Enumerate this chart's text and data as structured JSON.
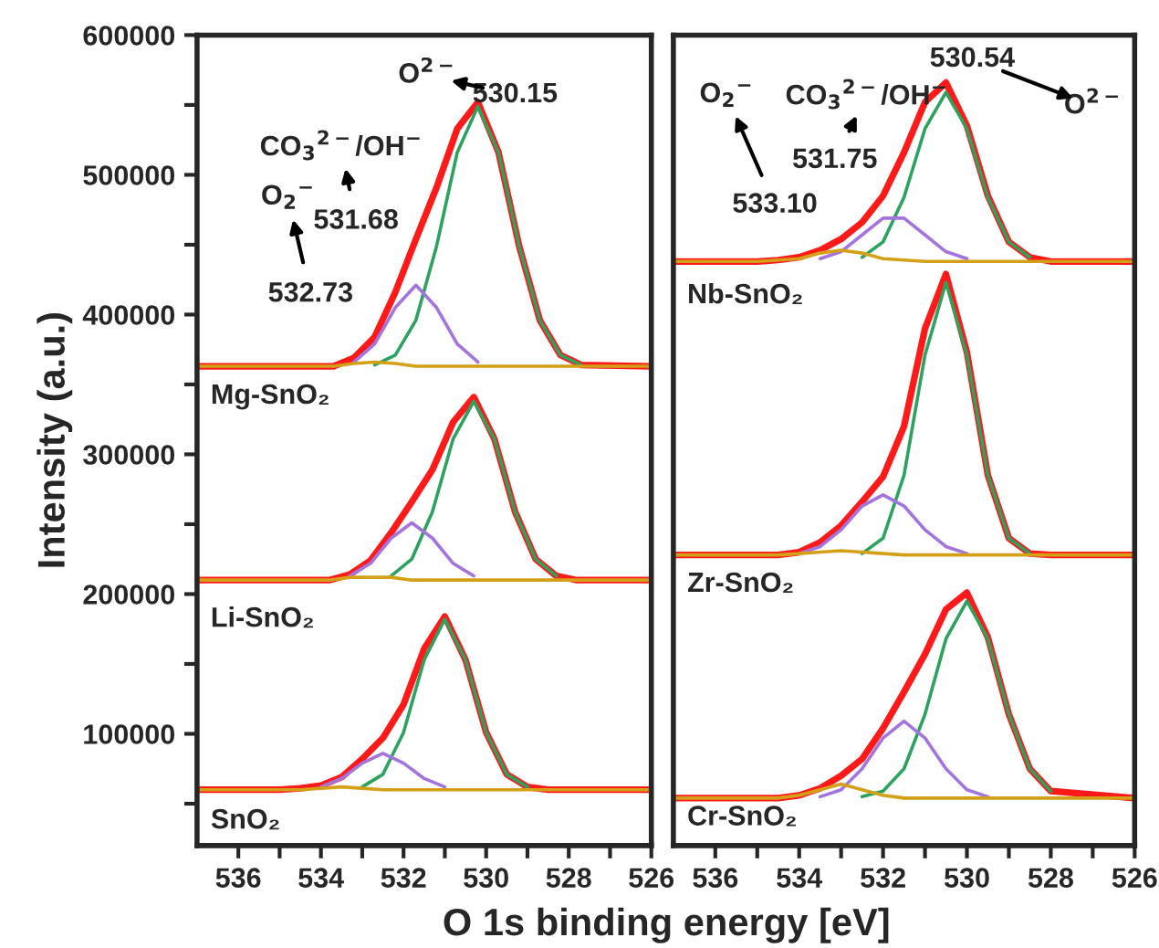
{
  "chart_data": [
    {
      "type": "line",
      "ylabel": "Intensity (a.u.)",
      "xlabel": "O 1s binding energy [eV]",
      "xlim": [
        537,
        526
      ],
      "ylim": [
        20000,
        600000
      ],
      "xticks": [
        536,
        {
          "value": 535,
          "label": null
        },
        534,
        {
          "value": 533,
          "label": null
        },
        532,
        {
          "value": 531,
          "label": null
        },
        530,
        {
          "value": 529,
          "label": null
        },
        528,
        {
          "value": 527,
          "label": null
        },
        526
      ],
      "yticks": [
        {
          "value": 50000,
          "label": null
        },
        100000,
        {
          "value": 150000,
          "label": null
        },
        200000,
        {
          "value": 250000,
          "label": null
        },
        300000,
        {
          "value": 350000,
          "label": null
        },
        400000,
        {
          "value": 450000,
          "label": null
        },
        500000,
        {
          "value": 550000,
          "label": null
        },
        600000
      ],
      "grid": false,
      "legend": false,
      "annotations": [
        "O$^{2−}$",
        "530.15",
        "CO$_{3}$$^{2−}$/OH$^{−}$",
        "531.68",
        "O$_{2}$$^{−}$",
        "532.73",
        "Mg-SnO₂",
        "Li-SnO₂",
        "SnO₂"
      ],
      "series": [
        {
          "color": "#ff1a1a",
          "x": [
            537,
            534.7,
            534.2,
            533.7,
            533.2,
            532.7,
            532.2,
            531.7,
            531.2,
            530.7,
            530.2,
            529.7,
            529.2,
            528.7,
            528.2,
            527.7,
            526
          ],
          "values": [
            363000,
            363000,
            363000,
            363000,
            369000,
            384000,
            416000,
            454000,
            491000,
            533000,
            552000,
            516000,
            449000,
            396000,
            371000,
            364000,
            363000
          ]
        },
        {
          "color": "#2ca25f",
          "x": [
            532.7,
            532.2,
            531.7,
            531.2,
            530.7,
            530.2,
            529.7,
            529.2,
            528.7,
            528.2,
            527.7
          ],
          "values": [
            364000,
            371000,
            396000,
            449000,
            516000,
            549000,
            516000,
            449000,
            396000,
            371000,
            364000
          ]
        },
        {
          "color": "#a374e0",
          "x": [
            533.2,
            532.7,
            532.2,
            531.7,
            531.2,
            530.7,
            530.2
          ],
          "values": [
            366000,
            379000,
            405000,
            421000,
            405000,
            379000,
            366000
          ]
        },
        {
          "color": "#d4a017",
          "x": [
            537,
            534.7,
            534.2,
            533.7,
            533.2,
            532.7,
            532.2,
            531.7,
            531.2,
            530.7,
            530.2,
            529.7,
            529.2,
            528.7,
            528.2,
            527.7,
            526
          ],
          "values": [
            363000,
            363000,
            363000,
            363000,
            365000,
            366000,
            365000,
            363000,
            363000,
            363000,
            363000,
            363000,
            363000,
            363000,
            363000,
            363000,
            363000
          ]
        },
        {
          "color": "#ff1a1a",
          "x": [
            537,
            534.8,
            534.3,
            533.8,
            533.3,
            532.8,
            532.3,
            531.8,
            531.3,
            530.8,
            530.3,
            529.8,
            529.3,
            528.8,
            528.3,
            527.8,
            526
          ],
          "values": [
            210000,
            210000,
            210000,
            210000,
            214000,
            224000,
            244000,
            266000,
            289000,
            323000,
            341000,
            311000,
            259000,
            225000,
            213000,
            210000,
            210000
          ]
        },
        {
          "color": "#2ca25f",
          "x": [
            532.3,
            531.8,
            531.3,
            530.8,
            530.3,
            529.8,
            529.3,
            528.8,
            528.3
          ],
          "values": [
            213000,
            225000,
            259000,
            311000,
            338000,
            311000,
            259000,
            225000,
            213000
          ]
        },
        {
          "color": "#a374e0",
          "x": [
            533.3,
            532.8,
            532.3,
            531.8,
            531.3,
            530.8,
            530.3
          ],
          "values": [
            213000,
            222000,
            240000,
            251000,
            240000,
            222000,
            213000
          ]
        },
        {
          "color": "#d4a017",
          "x": [
            537,
            534.8,
            534.3,
            533.8,
            533.3,
            532.8,
            532.3,
            531.8,
            531.3,
            530.8,
            530.3,
            529.8,
            529.3,
            528.8,
            528.3,
            527.8,
            526
          ],
          "values": [
            210000,
            210000,
            210000,
            210000,
            212000,
            212000,
            212000,
            210000,
            210000,
            210000,
            210000,
            210000,
            210000,
            210000,
            210000,
            210000,
            210000
          ]
        },
        {
          "color": "#ff1a1a",
          "x": [
            537,
            535.5,
            535,
            534.5,
            534,
            533.5,
            533,
            532.5,
            532,
            531.5,
            531,
            530.5,
            530,
            529.5,
            529,
            528.5,
            526
          ],
          "values": [
            60000,
            60000,
            60000,
            61000,
            63000,
            69000,
            82000,
            97000,
            121000,
            161000,
            184000,
            153000,
            101000,
            71000,
            62000,
            60000,
            60000
          ]
        },
        {
          "color": "#2ca25f",
          "x": [
            533,
            532.5,
            532,
            531.5,
            531,
            530.5,
            530,
            529.5,
            529
          ],
          "values": [
            62000,
            71000,
            101000,
            153000,
            182000,
            153000,
            101000,
            71000,
            62000
          ]
        },
        {
          "color": "#a374e0",
          "x": [
            534,
            533.5,
            533,
            532.5,
            532,
            531.5,
            531
          ],
          "values": [
            62000,
            68000,
            79000,
            86000,
            79000,
            68000,
            62000
          ]
        },
        {
          "color": "#d4a017",
          "x": [
            537,
            535.5,
            535,
            534.5,
            534,
            533.5,
            533,
            532.5,
            532,
            531.5,
            531,
            530.5,
            530,
            529.5,
            529,
            528.5,
            526
          ],
          "values": [
            60000,
            60000,
            60000,
            60000,
            61000,
            62000,
            61000,
            60000,
            60000,
            60000,
            60000,
            60000,
            60000,
            60000,
            60000,
            60000,
            60000
          ]
        }
      ]
    },
    {
      "type": "line",
      "tick_labels": "x",
      "xlim": [
        537,
        526
      ],
      "ylim": [
        20000,
        600000
      ],
      "xticks": [
        536,
        {
          "value": 535,
          "label": null
        },
        534,
        {
          "value": 533,
          "label": null
        },
        532,
        {
          "value": 531,
          "label": null
        },
        530,
        {
          "value": 529,
          "label": null
        },
        528,
        {
          "value": 527,
          "label": null
        },
        526
      ],
      "grid": false,
      "legend": false,
      "annotations": [
        "O$_{2}$$^{−}$",
        "CO$_{3}$$^{2−}$/OH$^{−}$",
        "O$^{2−}$",
        "530.54",
        "531.75",
        "533.10",
        "Nb-SnO₂",
        "Zr-SnO₂",
        "Cr-SnO₂"
      ],
      "series": [
        {
          "color": "#ff1a1a",
          "x": [
            537,
            535,
            534.5,
            534,
            533.5,
            533,
            532.5,
            532,
            531.5,
            531,
            530.5,
            530,
            529.5,
            529,
            528.5,
            528,
            526
          ],
          "values": [
            438000,
            438000,
            439000,
            441000,
            446000,
            454000,
            466000,
            485000,
            516000,
            552000,
            566000,
            535000,
            485000,
            452000,
            441000,
            438000,
            438000
          ]
        },
        {
          "color": "#2ca25f",
          "x": [
            532.5,
            532,
            531.5,
            531,
            530.5,
            530,
            529.5,
            529,
            528.5
          ],
          "values": [
            441000,
            452000,
            484000,
            533000,
            559000,
            533000,
            484000,
            452000,
            441000
          ]
        },
        {
          "color": "#a374e0",
          "x": [
            533.5,
            533,
            532.5,
            532,
            531.5,
            531,
            530.5,
            530
          ],
          "values": [
            440000,
            445000,
            457000,
            469000,
            469000,
            457000,
            445000,
            440000
          ]
        },
        {
          "color": "#d4a017",
          "x": [
            537,
            535,
            534.5,
            534,
            533.5,
            533,
            532.5,
            532,
            531.5,
            531,
            530.5,
            530,
            529.5,
            529,
            528.5,
            528,
            526
          ],
          "values": [
            438000,
            438000,
            439000,
            440000,
            444000,
            446000,
            444000,
            440000,
            439000,
            438000,
            438000,
            438000,
            438000,
            438000,
            438000,
            438000,
            438000
          ]
        },
        {
          "color": "#ff1a1a",
          "x": [
            537,
            535,
            534.5,
            534,
            533.5,
            533,
            532.5,
            532,
            531.5,
            531,
            530.5,
            530,
            529.5,
            529,
            528.5,
            528,
            526
          ],
          "values": [
            228000,
            228000,
            228000,
            230000,
            237000,
            249000,
            266000,
            284000,
            320000,
            390000,
            429000,
            373000,
            285000,
            240000,
            229000,
            228000,
            228000
          ]
        },
        {
          "color": "#2ca25f",
          "x": [
            532.5,
            532,
            531.5,
            531,
            530.5,
            530,
            529.5,
            529,
            528.5
          ],
          "values": [
            229000,
            240000,
            285000,
            371000,
            423000,
            371000,
            285000,
            240000,
            229000
          ]
        },
        {
          "color": "#a374e0",
          "x": [
            534,
            533.5,
            533,
            532.5,
            532,
            531.5,
            531,
            530.5,
            530
          ],
          "values": [
            229000,
            234000,
            246000,
            263000,
            271000,
            263000,
            246000,
            234000,
            229000
          ]
        },
        {
          "color": "#d4a017",
          "x": [
            537,
            535,
            534.5,
            534,
            533.5,
            533,
            532.5,
            532,
            531.5,
            531,
            530.5,
            530,
            529.5,
            529,
            528.5,
            528,
            526
          ],
          "values": [
            228000,
            228000,
            228000,
            229000,
            230000,
            231000,
            230000,
            229000,
            228000,
            228000,
            228000,
            228000,
            228000,
            228000,
            228000,
            228000,
            228000
          ]
        },
        {
          "color": "#ff1a1a",
          "x": [
            537,
            535,
            534.5,
            534,
            533.5,
            533,
            532.5,
            532,
            531.5,
            531,
            530.5,
            530,
            529.5,
            529,
            528.5,
            528,
            526
          ],
          "values": [
            54000,
            54000,
            54000,
            56000,
            61000,
            70000,
            82000,
            104000,
            130000,
            157000,
            189000,
            201000,
            169000,
            114000,
            75000,
            59000,
            54000
          ]
        },
        {
          "color": "#2ca25f",
          "x": [
            532.5,
            532,
            531.5,
            531,
            530.5,
            530,
            529.5,
            529,
            528.5,
            528
          ],
          "values": [
            55000,
            59000,
            75000,
            114000,
            168000,
            195000,
            168000,
            114000,
            75000,
            59000
          ]
        },
        {
          "color": "#a374e0",
          "x": [
            533.5,
            533,
            532.5,
            532,
            531.5,
            531,
            530.5,
            530,
            529.5
          ],
          "values": [
            55000,
            60000,
            75000,
            97000,
            109000,
            97000,
            75000,
            60000,
            55000
          ]
        },
        {
          "color": "#d4a017",
          "x": [
            537,
            535,
            534.5,
            534,
            533.5,
            533,
            532.5,
            532,
            531.5,
            531,
            530.5,
            530,
            529.5,
            529,
            528.5,
            528,
            526
          ],
          "values": [
            54000,
            54000,
            54000,
            56000,
            60000,
            64000,
            60000,
            56000,
            54000,
            54000,
            54000,
            54000,
            54000,
            54000,
            54000,
            54000,
            54000
          ]
        }
      ]
    }
  ]
}
